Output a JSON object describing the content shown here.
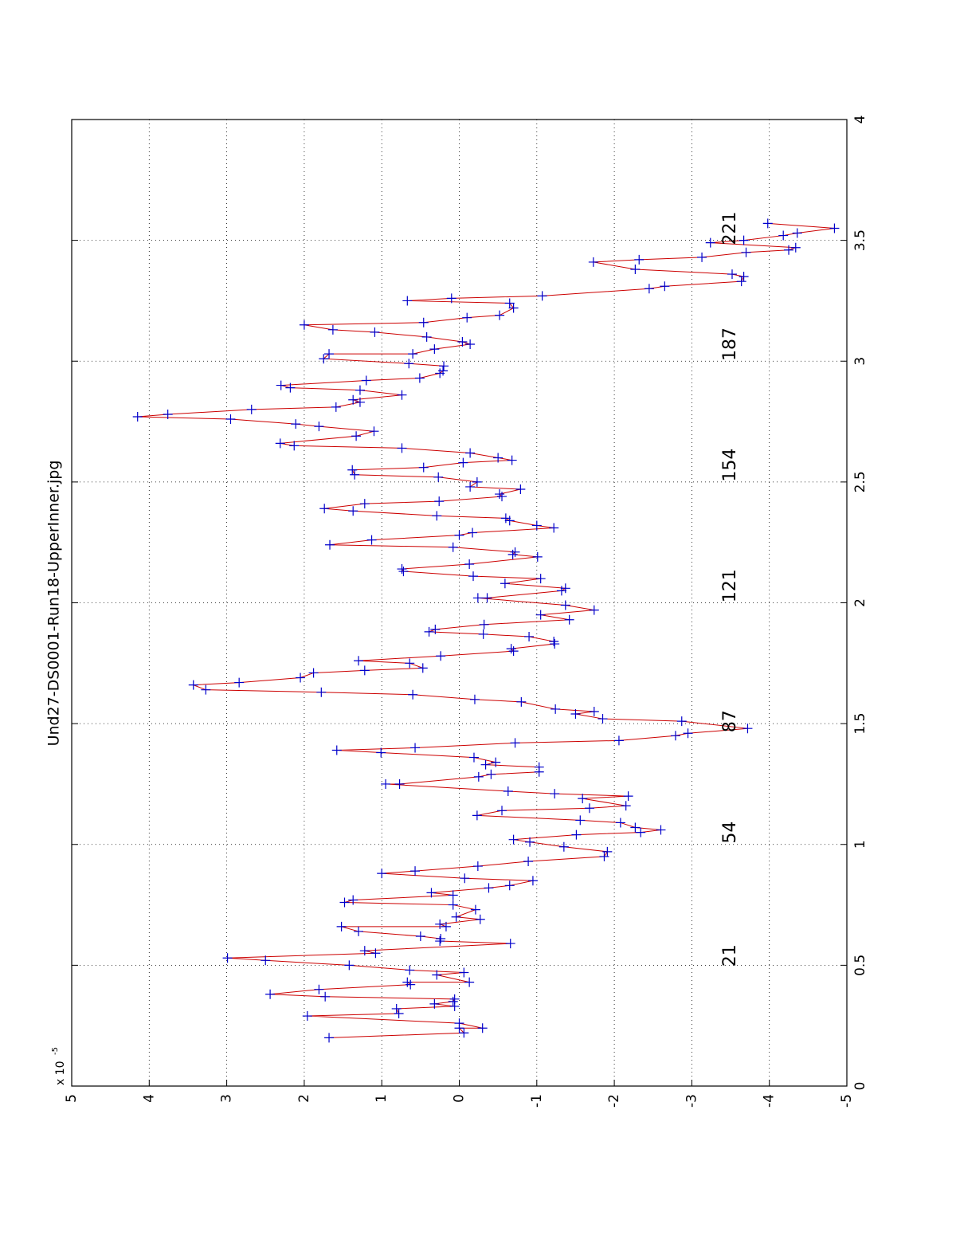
{
  "chart_data": {
    "type": "line",
    "title": "Und27-DS0001-Run18-UpperInner.jpg",
    "y_scale_label": {
      "base": "x 10",
      "exponent": "-5"
    },
    "x": [
      0.2,
      0.22,
      0.24,
      0.24,
      0.26,
      0.29,
      0.3,
      0.32,
      0.33,
      0.34,
      0.35,
      0.36,
      0.37,
      0.38,
      0.4,
      0.42,
      0.43,
      0.43,
      0.46,
      0.47,
      0.48,
      0.5,
      0.52,
      0.53,
      0.55,
      0.56,
      0.59,
      0.6,
      0.61,
      0.62,
      0.64,
      0.66,
      0.66,
      0.67,
      0.69,
      0.7,
      0.73,
      0.75,
      0.76,
      0.77,
      0.79,
      0.8,
      0.82,
      0.83,
      0.85,
      0.86,
      0.88,
      0.89,
      0.91,
      0.93,
      0.95,
      0.97,
      0.99,
      1.01,
      1.02,
      1.04,
      1.05,
      1.06,
      1.07,
      1.09,
      1.1,
      1.12,
      1.14,
      1.15,
      1.16,
      1.19,
      1.2,
      1.21,
      1.22,
      1.25,
      1.25,
      1.28,
      1.29,
      1.3,
      1.32,
      1.33,
      1.34,
      1.36,
      1.38,
      1.39,
      1.4,
      1.42,
      1.43,
      1.45,
      1.46,
      1.48,
      1.51,
      1.52,
      1.54,
      1.55,
      1.56,
      1.59,
      1.6,
      1.62,
      1.63,
      1.64,
      1.66,
      1.67,
      1.69,
      1.71,
      1.72,
      1.73,
      1.75,
      1.76,
      1.78,
      1.8,
      1.81,
      1.83,
      1.84,
      1.86,
      1.87,
      1.88,
      1.89,
      1.91,
      1.93,
      1.95,
      1.97,
      1.99,
      2.02,
      2.02,
      2.05,
      2.06,
      2.08,
      2.1,
      2.11,
      2.13,
      2.14,
      2.16,
      2.19,
      2.2,
      2.21,
      2.23,
      2.24,
      2.26,
      2.28,
      2.29,
      2.31,
      2.32,
      2.34,
      2.35,
      2.36,
      2.38,
      2.39,
      2.41,
      2.42,
      2.44,
      2.45,
      2.47,
      2.48,
      2.5,
      2.52,
      2.53,
      2.55,
      2.56,
      2.58,
      2.59,
      2.6,
      2.62,
      2.64,
      2.65,
      2.66,
      2.69,
      2.71,
      2.73,
      2.74,
      2.76,
      2.77,
      2.78,
      2.8,
      2.81,
      2.83,
      2.84,
      2.86,
      2.88,
      2.89,
      2.9,
      2.92,
      2.93,
      2.95,
      2.96,
      2.98,
      2.99,
      3.01,
      3.03,
      3.03,
      3.05,
      3.07,
      3.08,
      3.1,
      3.12,
      3.13,
      3.15,
      3.16,
      3.18,
      3.19,
      3.22,
      3.24,
      3.25,
      3.26,
      3.27,
      3.3,
      3.31,
      3.33,
      3.35,
      3.36,
      3.38,
      3.41,
      3.42,
      3.43,
      3.45,
      3.46,
      3.47,
      3.49,
      3.5,
      3.52,
      3.53,
      3.55,
      3.57
    ],
    "series": [
      {
        "color": "#cc0000",
        "marker_color": "#0000cc",
        "values": [
          1.68,
          -0.06,
          0,
          -0.3,
          0,
          1.96,
          0.78,
          0.81,
          0.06,
          0.32,
          0.08,
          0.06,
          1.73,
          2.44,
          1.81,
          0.63,
          0.67,
          -0.13,
          0.29,
          -0.06,
          0.64,
          1.42,
          2.5,
          2.99,
          1.08,
          1.22,
          -0.66,
          0.25,
          0.24,
          0.5,
          1.3,
          1.52,
          0.17,
          0.25,
          -0.27,
          0.04,
          -0.21,
          0.08,
          1.48,
          1.37,
          0.08,
          0.36,
          -0.38,
          -0.65,
          -0.95,
          -0.07,
          1.0,
          0.57,
          -0.24,
          -0.89,
          -1.87,
          -1.91,
          -1.35,
          -0.91,
          -0.7,
          -1.51,
          -2.34,
          -2.6,
          -2.27,
          -2.08,
          -1.56,
          -0.23,
          -0.55,
          -1.68,
          -2.15,
          -1.59,
          -2.18,
          -1.23,
          -0.63,
          0.95,
          0.77,
          -0.25,
          -0.41,
          -1.03,
          -1.03,
          -0.34,
          -0.47,
          -0.19,
          1.01,
          1.58,
          0.57,
          -0.72,
          -2.06,
          -2.79,
          -2.95,
          -3.72,
          -2.87,
          -1.85,
          -1.5,
          -1.74,
          -1.24,
          -0.8,
          -0.2,
          0.6,
          1.78,
          3.27,
          3.43,
          2.84,
          2.05,
          1.88,
          1.22,
          0.47,
          0.64,
          1.3,
          0.24,
          -0.7,
          -0.67,
          -1.23,
          -1.22,
          -0.9,
          -0.31,
          0.39,
          0.31,
          -0.32,
          -1.42,
          -1.05,
          -1.74,
          -1.37,
          -0.24,
          -0.36,
          -1.32,
          -1.37,
          -0.59,
          -1.05,
          -0.18,
          0.72,
          0.74,
          -0.13,
          -1.01,
          -0.69,
          -0.72,
          0.08,
          1.67,
          1.13,
          0,
          -0.17,
          -1.22,
          -1.0,
          -0.65,
          -0.6,
          0.29,
          1.37,
          1.74,
          1.22,
          0.26,
          -0.55,
          -0.52,
          -0.79,
          -0.14,
          -0.23,
          0.27,
          1.35,
          1.38,
          0.46,
          -0.05,
          -0.68,
          -0.5,
          -0.14,
          0.74,
          2.13,
          2.31,
          1.33,
          1.1,
          1.81,
          2.11,
          2.95,
          4.15,
          3.76,
          2.68,
          1.59,
          1.28,
          1.37,
          0.74,
          1.28,
          2.18,
          2.3,
          1.2,
          0.51,
          0.25,
          0.21,
          0.2,
          0.65,
          1.75,
          1.68,
          0.6,
          0.32,
          -0.14,
          -0.04,
          0.42,
          1.09,
          1.63,
          2.0,
          0.46,
          -0.1,
          -0.52,
          -0.7,
          -0.65,
          0.67,
          0.1,
          -1.07,
          -2.45,
          -2.65,
          -3.64,
          -3.67,
          -3.52,
          -2.27,
          -1.73,
          -2.32,
          -3.13,
          -3.7,
          -4.25,
          -4.34,
          -3.24,
          -3.67,
          -4.18,
          -4.36,
          -4.84,
          -3.98
        ]
      }
    ],
    "annotations": [
      {
        "text": "21",
        "x": 0.54,
        "y": -3.5
      },
      {
        "text": "54",
        "x": 1.05,
        "y": -3.5
      },
      {
        "text": "87",
        "x": 1.51,
        "y": -3.5
      },
      {
        "text": "121",
        "x": 2.07,
        "y": -3.5
      },
      {
        "text": "154",
        "x": 2.57,
        "y": -3.5
      },
      {
        "text": "187",
        "x": 3.07,
        "y": -3.5
      },
      {
        "text": "221",
        "x": 3.55,
        "y": -3.5
      }
    ],
    "xlim": [
      0,
      4
    ],
    "xticks": [
      0,
      0.5,
      1,
      1.5,
      2,
      2.5,
      3,
      3.5,
      4
    ],
    "ylim": [
      -5,
      5
    ],
    "yticks": [
      5,
      4,
      3,
      2,
      1,
      0,
      -1,
      -2,
      -3,
      -4,
      -5
    ],
    "grid": true
  }
}
